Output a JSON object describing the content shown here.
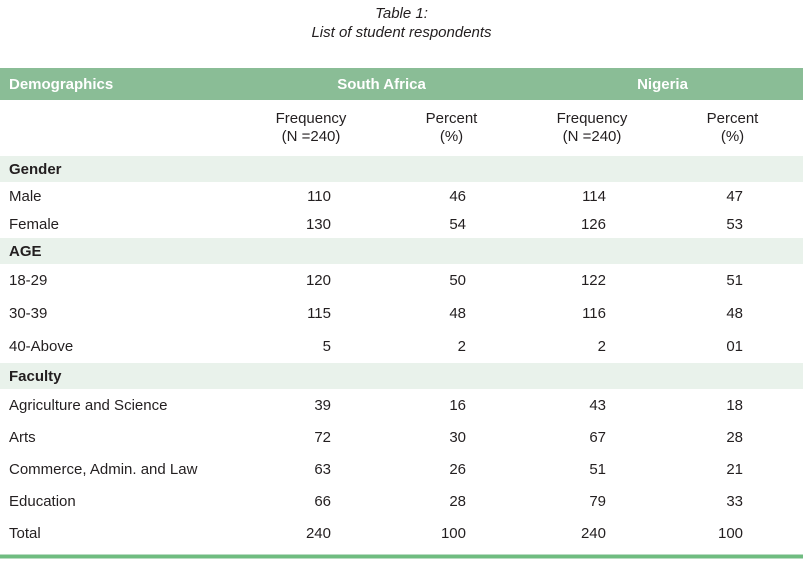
{
  "title": {
    "line1": "Table 1:",
    "line2": "List of student respondents"
  },
  "table": {
    "columns": {
      "demographics": "Demographics",
      "south_africa": "South Africa",
      "nigeria": "Nigeria"
    },
    "subheaders": [
      {
        "line1": "Frequency",
        "line2": "(N =240)"
      },
      {
        "line1": "Percent",
        "line2": "(%)"
      },
      {
        "line1": "Frequency",
        "line2": "(N =240)"
      },
      {
        "line1": "Percent",
        "line2": "(%)"
      }
    ],
    "sections": [
      {
        "label": "Gender",
        "rows": [
          {
            "label": "Male",
            "values": [
              "110",
              "46",
              "114",
              "47"
            ]
          },
          {
            "label": "Female",
            "values": [
              "130",
              "54",
              "126",
              "53"
            ]
          }
        ]
      },
      {
        "label": "AGE",
        "rows": [
          {
            "label": "18-29",
            "values": [
              "120",
              "50",
              "122",
              "51"
            ]
          },
          {
            "label": "30-39",
            "values": [
              "115",
              "48",
              "116",
              "48"
            ]
          },
          {
            "label": "40-Above",
            "values": [
              "5",
              "2",
              "2",
              "01"
            ]
          }
        ]
      },
      {
        "label": "Faculty",
        "rows": [
          {
            "label": "Agriculture and Science",
            "values": [
              "39",
              "16",
              "43",
              "18"
            ]
          },
          {
            "label": "Arts",
            "values": [
              "72",
              "30",
              "67",
              "28"
            ]
          },
          {
            "label": "Commerce, Admin. and Law",
            "values": [
              "63",
              "26",
              "51",
              "21"
            ]
          },
          {
            "label": "Education",
            "values": [
              "66",
              "28",
              "79",
              "33"
            ]
          }
        ]
      }
    ],
    "total_row": {
      "label": "Total",
      "values": [
        "240",
        "100",
        "240",
        "100"
      ]
    }
  },
  "colors": {
    "header_green": "#8abd96",
    "band_green": "#e9f2eb",
    "accent_line_green": "#6fbc80",
    "text": "#231f20"
  }
}
